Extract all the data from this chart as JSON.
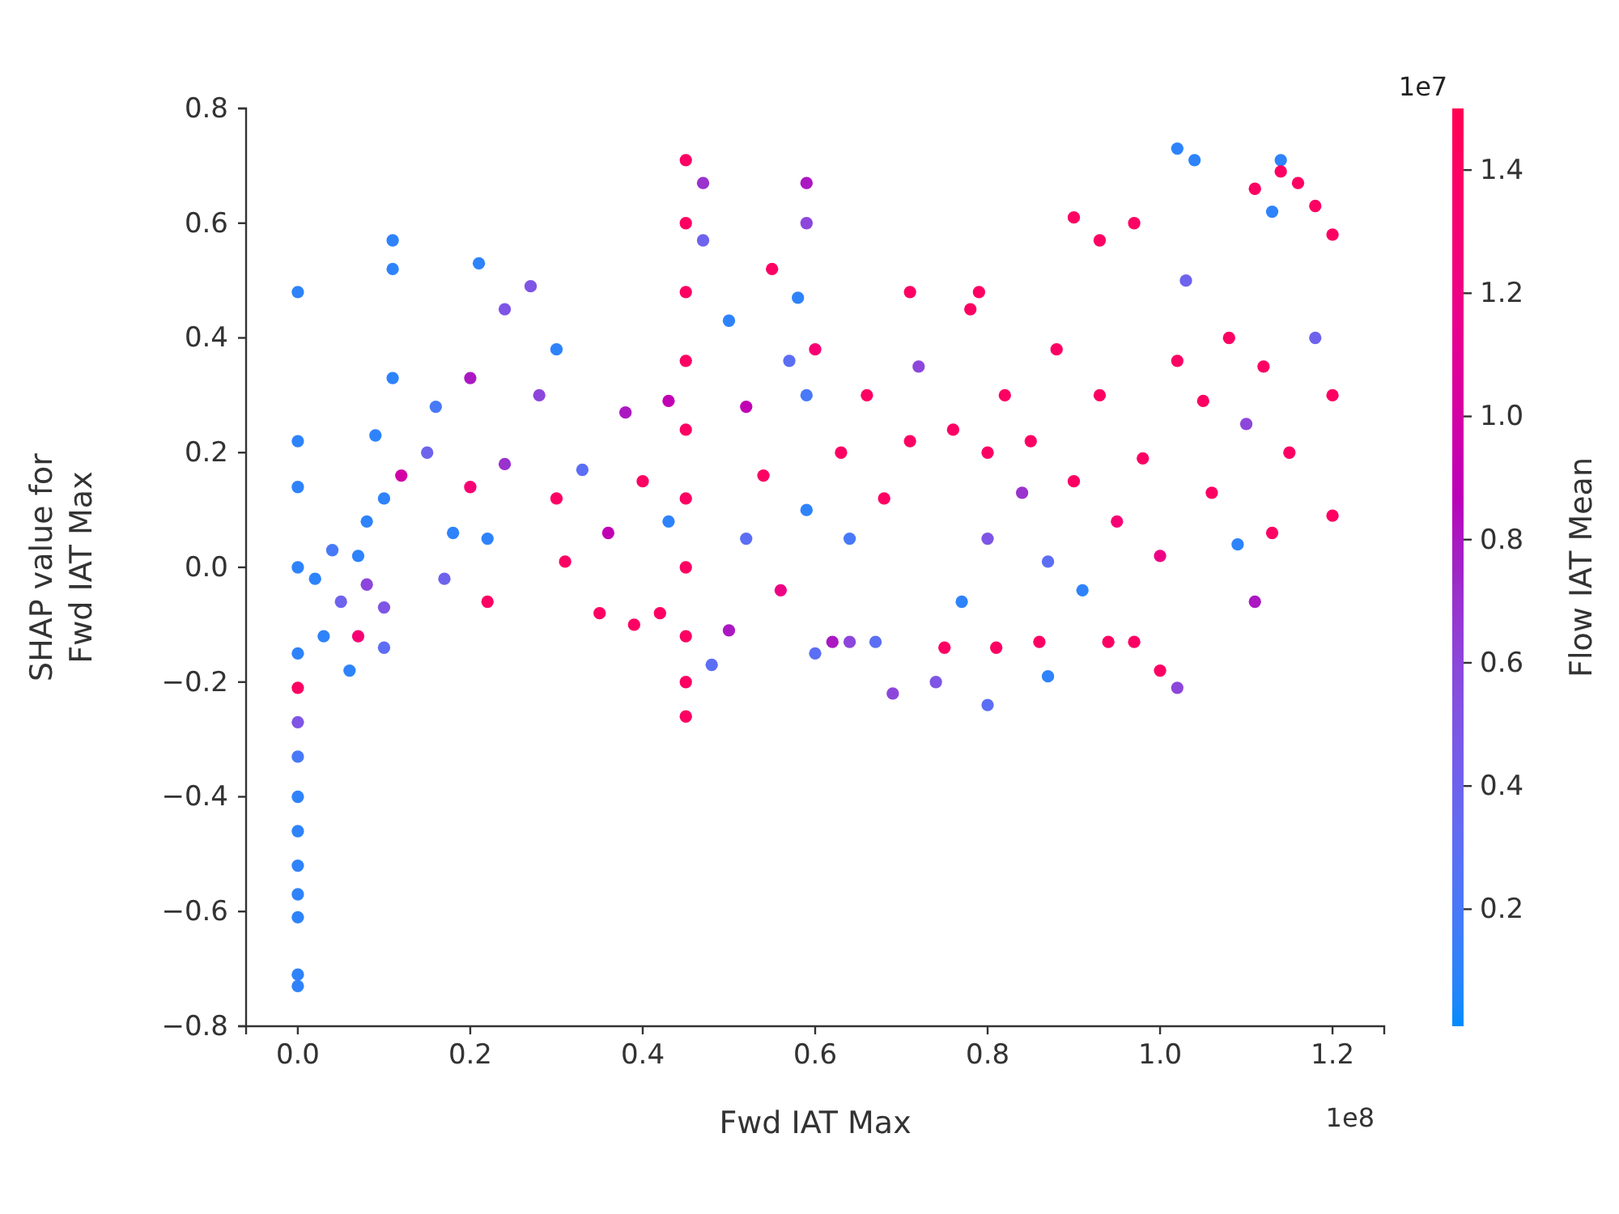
{
  "chart_data": {
    "type": "scatter",
    "xlabel": "Fwd IAT Max",
    "ylabel": "SHAP value for\nFwd IAT Max",
    "clabel": "Flow IAT Mean",
    "annotations": [
      "1e8",
      "1e7"
    ],
    "marker": "circle",
    "xlim": [
      -0.06,
      1.26
    ],
    "ylim": [
      -0.8,
      0.8
    ],
    "xticks": [
      {
        "value": 0,
        "label": "0.0"
      },
      0.2,
      0.4,
      0.6,
      0.8,
      {
        "value": 1,
        "label": "1.0"
      },
      1.2
    ],
    "yticks": [
      {
        "value": -0.8,
        "label": "−0.8"
      },
      {
        "value": -0.6,
        "label": "−0.6"
      },
      {
        "value": -0.4,
        "label": "−0.4"
      },
      {
        "value": -0.2,
        "label": "−0.2"
      },
      {
        "value": 0,
        "label": "0.0"
      },
      0.2,
      0.4,
      0.6,
      0.8
    ],
    "clim": [
      0.01,
      1.5
    ],
    "cticks": [
      0.2,
      0.4,
      0.6,
      0.8,
      {
        "value": 1,
        "label": "1.0"
      },
      1.2,
      1.4
    ],
    "x": [
      0,
      0,
      0,
      0,
      0,
      0,
      0,
      0,
      0,
      0,
      0,
      0,
      0,
      0,
      0,
      0.02,
      0.03,
      0.04,
      0.05,
      0.06,
      0.07,
      0.07,
      0.08,
      0.1,
      0.1,
      0.09,
      0.11,
      0.11,
      0.11,
      0.08,
      0.1,
      0.12,
      0.15,
      0.16,
      0.17,
      0.18,
      0.2,
      0.2,
      0.21,
      0.22,
      0.24,
      0.24,
      0.22,
      0.27,
      0.28,
      0.3,
      0.3,
      0.31,
      0.33,
      0.35,
      0.36,
      0.38,
      0.39,
      0.4,
      0.42,
      0.43,
      0.43,
      0.45,
      0.45,
      0.45,
      0.45,
      0.45,
      0.45,
      0.45,
      0.45,
      0.45,
      0.45,
      0.47,
      0.47,
      0.48,
      0.5,
      0.5,
      0.52,
      0.55,
      0.52,
      0.54,
      0.56,
      0.57,
      0.59,
      0.59,
      0.58,
      0.59,
      0.59,
      0.6,
      0.6,
      0.62,
      0.63,
      0.64,
      0.64,
      0.66,
      0.67,
      0.68,
      0.69,
      0.71,
      0.71,
      0.72,
      0.74,
      0.75,
      0.76,
      0.77,
      0.78,
      0.79,
      0.8,
      0.8,
      0.8,
      0.81,
      0.82,
      0.84,
      0.85,
      0.86,
      0.87,
      0.87,
      0.88,
      0.9,
      0.9,
      0.91,
      0.93,
      0.93,
      0.94,
      0.95,
      0.97,
      0.97,
      0.98,
      1.0,
      1.0,
      1.02,
      1.02,
      1.02,
      1.04,
      1.03,
      1.05,
      1.06,
      1.08,
      1.09,
      1.1,
      1.11,
      1.11,
      1.12,
      1.13,
      1.13,
      1.14,
      1.14,
      1.15,
      1.16,
      1.18,
      1.18,
      1.2,
      1.2,
      1.2
    ],
    "values": [
      -0.73,
      -0.71,
      -0.61,
      -0.57,
      -0.52,
      -0.46,
      -0.4,
      -0.33,
      -0.27,
      -0.21,
      -0.15,
      0,
      0.14,
      0.22,
      0.48,
      -0.02,
      -0.12,
      0.03,
      -0.06,
      -0.18,
      -0.12,
      0.02,
      -0.03,
      -0.14,
      -0.07,
      0.23,
      0.33,
      0.52,
      0.57,
      0.08,
      0.12,
      0.16,
      0.2,
      0.28,
      -0.02,
      0.06,
      0.33,
      0.14,
      0.53,
      0.05,
      0.45,
      0.18,
      -0.06,
      0.49,
      0.3,
      0.38,
      0.12,
      0.01,
      0.17,
      -0.08,
      0.06,
      0.27,
      -0.1,
      0.15,
      -0.08,
      0.08,
      0.29,
      0.71,
      0.6,
      0.48,
      0.36,
      0.24,
      0.12,
      0,
      -0.12,
      -0.2,
      -0.26,
      0.67,
      0.57,
      -0.17,
      -0.11,
      0.43,
      0.28,
      0.52,
      0.05,
      0.16,
      -0.04,
      0.36,
      0.67,
      0.6,
      0.47,
      0.3,
      0.1,
      -0.15,
      0.38,
      -0.13,
      0.2,
      0.05,
      -0.13,
      0.3,
      -0.13,
      0.12,
      -0.22,
      0.48,
      0.22,
      0.35,
      -0.2,
      -0.14,
      0.24,
      -0.06,
      0.45,
      0.48,
      0.2,
      0.05,
      -0.24,
      -0.14,
      0.3,
      0.13,
      0.22,
      -0.13,
      -0.19,
      0.01,
      0.38,
      0.61,
      0.15,
      -0.04,
      0.57,
      0.3,
      -0.13,
      0.08,
      0.6,
      -0.13,
      0.19,
      0.02,
      -0.18,
      -0.21,
      0.36,
      0.73,
      0.71,
      0.5,
      0.29,
      0.13,
      0.4,
      0.04,
      0.25,
      -0.06,
      0.66,
      0.35,
      0.62,
      0.06,
      0.71,
      0.69,
      0.2,
      0.67,
      0.63,
      0.4,
      0.58,
      0.3,
      0.09
    ],
    "cvalues": [
      0.1,
      0.1,
      0.1,
      0.1,
      0.1,
      0.1,
      0.1,
      0.2,
      0.5,
      1.4,
      0.1,
      0.1,
      0.1,
      0.1,
      0.1,
      0.1,
      0.1,
      0.2,
      0.4,
      0.1,
      1.3,
      0.1,
      0.6,
      0.3,
      0.5,
      0.1,
      0.1,
      0.1,
      0.1,
      0.1,
      0.1,
      1.0,
      0.4,
      0.2,
      0.4,
      0.1,
      0.8,
      1.3,
      0.1,
      0.1,
      0.5,
      0.7,
      1.4,
      0.5,
      0.6,
      0.1,
      1.4,
      1.4,
      0.3,
      1.4,
      0.9,
      0.8,
      1.4,
      1.4,
      1.4,
      0.1,
      0.9,
      1.4,
      1.4,
      1.4,
      1.4,
      1.4,
      1.4,
      1.4,
      1.4,
      1.4,
      1.4,
      0.7,
      0.4,
      0.3,
      0.8,
      0.1,
      0.9,
      1.4,
      0.3,
      1.4,
      1.2,
      0.3,
      0.8,
      0.6,
      0.1,
      0.2,
      0.1,
      0.3,
      1.3,
      0.8,
      1.4,
      0.2,
      0.6,
      1.4,
      0.3,
      1.4,
      0.6,
      1.4,
      1.4,
      0.6,
      0.5,
      1.4,
      1.4,
      0.1,
      1.4,
      1.4,
      1.4,
      0.5,
      0.3,
      1.4,
      1.4,
      0.7,
      1.4,
      1.4,
      0.1,
      0.3,
      1.4,
      1.4,
      1.4,
      0.1,
      1.4,
      1.4,
      1.4,
      1.3,
      1.4,
      1.4,
      1.4,
      1.2,
      1.4,
      0.6,
      1.4,
      0.1,
      0.1,
      0.4,
      1.4,
      1.4,
      1.4,
      0.1,
      0.6,
      0.8,
      1.4,
      1.4,
      0.1,
      1.4,
      0.1,
      1.4,
      1.4,
      1.4,
      1.4,
      0.4,
      1.4,
      1.4,
      1.4
    ]
  }
}
